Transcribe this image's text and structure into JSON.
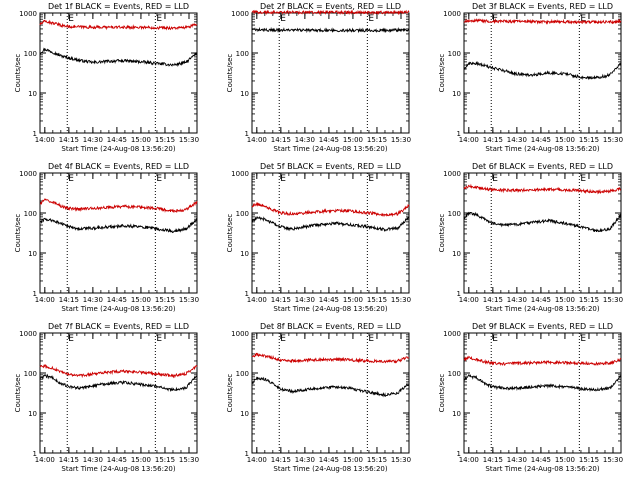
{
  "chart_data": [
    {
      "type": "line",
      "title": "Det 1f BLACK = Events, RED = LLD",
      "xlabel": "Start Time (24-Aug-08 13:56:20)",
      "ylabel": "Counts/sec",
      "yscale": "log",
      "ylim": [
        1,
        1000
      ],
      "yticks": [
        "1",
        "10",
        "100",
        "1000"
      ],
      "xlim": [
        "13:57",
        "15:35"
      ],
      "xticks": [
        "14:00",
        "14:15",
        "14:30",
        "14:45",
        "15:00",
        "15:15",
        "15:30"
      ],
      "markers": [
        "14:14",
        "15:09"
      ],
      "marker_flags": [
        "E",
        "E"
      ],
      "grid": false,
      "series": [
        {
          "color": "#000000",
          "x": [
            "13:57",
            "14:00",
            "14:05",
            "14:10",
            "14:15",
            "14:22",
            "14:30",
            "14:40",
            "14:50",
            "15:00",
            "15:10",
            "15:20",
            "15:28",
            "15:35"
          ],
          "values": [
            100,
            125,
            105,
            85,
            75,
            65,
            58,
            62,
            64,
            60,
            55,
            50,
            58,
            100
          ]
        },
        {
          "color": "#cc0000",
          "x": [
            "13:57",
            "14:00",
            "14:05",
            "14:10",
            "14:15",
            "14:22",
            "14:30",
            "14:40",
            "14:50",
            "15:00",
            "15:10",
            "15:20",
            "15:28",
            "15:35"
          ],
          "values": [
            520,
            620,
            560,
            490,
            460,
            450,
            440,
            440,
            440,
            440,
            430,
            420,
            430,
            520
          ]
        }
      ]
    },
    {
      "type": "line",
      "title": "Det 2f BLACK = Events, RED = LLD",
      "xlabel": "Start Time (24-Aug-08 13:56:20)",
      "ylabel": "Counts/sec",
      "yscale": "log",
      "ylim": [
        1,
        1000
      ],
      "yticks": [
        "1",
        "10",
        "100",
        "1000"
      ],
      "xlim": [
        "13:57",
        "15:35"
      ],
      "xticks": [
        "14:00",
        "14:15",
        "14:30",
        "14:45",
        "15:00",
        "15:15",
        "15:30"
      ],
      "markers": [
        "14:14",
        "15:09"
      ],
      "marker_flags": [
        "E",
        "E"
      ],
      "grid": false,
      "series": [
        {
          "color": "#000000",
          "x": [
            "13:57",
            "14:15",
            "14:30",
            "14:45",
            "15:00",
            "15:15",
            "15:35"
          ],
          "values": [
            380,
            375,
            370,
            370,
            370,
            365,
            380
          ]
        },
        {
          "color": "#cc0000",
          "x": [
            "13:57",
            "14:15",
            "14:30",
            "14:45",
            "15:00",
            "15:15",
            "15:35"
          ],
          "values": [
            1050,
            1050,
            1040,
            1040,
            1040,
            1030,
            1050
          ]
        }
      ]
    },
    {
      "type": "line",
      "title": "Det 3f BLACK = Events, RED = LLD",
      "xlabel": "Start Time (24-Aug-08 13:56:20)",
      "ylabel": "Counts/sec",
      "yscale": "log",
      "ylim": [
        1,
        1000
      ],
      "yticks": [
        "1",
        "10",
        "100",
        "1000"
      ],
      "xlim": [
        "13:57",
        "15:35"
      ],
      "xticks": [
        "14:00",
        "14:15",
        "14:30",
        "14:45",
        "15:00",
        "15:15",
        "15:30"
      ],
      "markers": [
        "14:14",
        "15:09"
      ],
      "marker_flags": [
        "E",
        "E"
      ],
      "grid": false,
      "series": [
        {
          "color": "#000000",
          "x": [
            "13:57",
            "14:00",
            "14:05",
            "14:12",
            "14:20",
            "14:30",
            "14:40",
            "14:50",
            "15:00",
            "15:10",
            "15:20",
            "15:28",
            "15:35"
          ],
          "values": [
            40,
            55,
            55,
            45,
            38,
            30,
            28,
            32,
            30,
            25,
            24,
            28,
            55
          ]
        },
        {
          "color": "#cc0000",
          "x": [
            "13:57",
            "14:00",
            "14:10",
            "14:20",
            "14:30",
            "14:45",
            "15:00",
            "15:15",
            "15:30",
            "15:35"
          ],
          "values": [
            600,
            650,
            630,
            620,
            610,
            600,
            600,
            590,
            600,
            620
          ]
        }
      ]
    },
    {
      "type": "line",
      "title": "Det 4f BLACK = Events, RED = LLD",
      "xlabel": "Start Time (24-Aug-08 13:56:20)",
      "ylabel": "Counts/sec",
      "yscale": "log",
      "ylim": [
        1,
        1000
      ],
      "yticks": [
        "1",
        "10",
        "100",
        "1000"
      ],
      "xlim": [
        "13:57",
        "15:35"
      ],
      "xticks": [
        "14:00",
        "14:15",
        "14:30",
        "14:45",
        "15:00",
        "15:15",
        "15:30"
      ],
      "markers": [
        "14:14",
        "15:09"
      ],
      "marker_flags": [
        "E",
        "E"
      ],
      "grid": false,
      "series": [
        {
          "color": "#000000",
          "x": [
            "13:57",
            "14:00",
            "14:05",
            "14:10",
            "14:15",
            "14:22",
            "14:30",
            "14:40",
            "14:50",
            "15:00",
            "15:10",
            "15:20",
            "15:28",
            "15:35"
          ],
          "values": [
            60,
            70,
            65,
            55,
            45,
            40,
            42,
            45,
            48,
            45,
            40,
            35,
            40,
            70
          ]
        },
        {
          "color": "#cc0000",
          "x": [
            "13:57",
            "14:00",
            "14:05",
            "14:10",
            "14:15",
            "14:22",
            "14:30",
            "14:40",
            "14:50",
            "15:00",
            "15:10",
            "15:20",
            "15:28",
            "15:35"
          ],
          "values": [
            170,
            210,
            190,
            150,
            130,
            125,
            130,
            140,
            145,
            140,
            130,
            110,
            120,
            190
          ]
        }
      ]
    },
    {
      "type": "line",
      "title": "Det 5f BLACK = Events, RED = LLD",
      "xlabel": "Start Time (24-Aug-08 13:56:20)",
      "ylabel": "Counts/sec",
      "yscale": "log",
      "ylim": [
        1,
        1000
      ],
      "yticks": [
        "1",
        "10",
        "100",
        "1000"
      ],
      "xlim": [
        "13:57",
        "15:35"
      ],
      "xticks": [
        "14:00",
        "14:15",
        "14:30",
        "14:45",
        "15:00",
        "15:15",
        "15:30"
      ],
      "markers": [
        "14:14",
        "15:09"
      ],
      "marker_flags": [
        "E",
        "E"
      ],
      "grid": false,
      "series": [
        {
          "color": "#000000",
          "x": [
            "13:57",
            "14:00",
            "14:05",
            "14:10",
            "14:15",
            "14:22",
            "14:30",
            "14:40",
            "14:50",
            "15:00",
            "15:10",
            "15:20",
            "15:28",
            "15:35"
          ],
          "values": [
            60,
            75,
            70,
            55,
            45,
            40,
            45,
            52,
            55,
            50,
            45,
            38,
            42,
            80
          ]
        },
        {
          "color": "#cc0000",
          "x": [
            "13:57",
            "14:00",
            "14:05",
            "14:10",
            "14:15",
            "14:22",
            "14:30",
            "14:40",
            "14:50",
            "15:00",
            "15:10",
            "15:20",
            "15:28",
            "15:35"
          ],
          "values": [
            150,
            170,
            150,
            120,
            100,
            95,
            100,
            110,
            115,
            110,
            100,
            90,
            95,
            150
          ]
        }
      ]
    },
    {
      "type": "line",
      "title": "Det 6f BLACK = Events, RED = LLD",
      "xlabel": "Start Time (24-Aug-08 13:56:20)",
      "ylabel": "Counts/sec",
      "yscale": "log",
      "ylim": [
        1,
        1000
      ],
      "yticks": [
        "1",
        "10",
        "100",
        "1000"
      ],
      "xlim": [
        "13:57",
        "15:35"
      ],
      "xticks": [
        "14:00",
        "14:15",
        "14:30",
        "14:45",
        "15:00",
        "15:15",
        "15:30"
      ],
      "markers": [
        "14:14",
        "15:09"
      ],
      "marker_flags": [
        "E",
        "E"
      ],
      "grid": false,
      "series": [
        {
          "color": "#000000",
          "x": [
            "13:57",
            "14:00",
            "14:05",
            "14:10",
            "14:15",
            "14:22",
            "14:30",
            "14:40",
            "14:50",
            "15:00",
            "15:10",
            "15:20",
            "15:28",
            "15:35"
          ],
          "values": [
            75,
            100,
            90,
            70,
            55,
            50,
            52,
            58,
            65,
            55,
            45,
            35,
            40,
            90
          ]
        },
        {
          "color": "#cc0000",
          "x": [
            "13:57",
            "14:00",
            "14:05",
            "14:10",
            "14:15",
            "14:22",
            "14:30",
            "14:40",
            "14:50",
            "15:00",
            "15:10",
            "15:20",
            "15:28",
            "15:35"
          ],
          "values": [
            400,
            460,
            440,
            400,
            380,
            370,
            370,
            380,
            390,
            380,
            360,
            340,
            350,
            400
          ]
        }
      ]
    },
    {
      "type": "line",
      "title": "Det 7f BLACK = Events, RED = LLD",
      "xlabel": "Start Time (24-Aug-08 13:56:20)",
      "ylabel": "Counts/sec",
      "yscale": "log",
      "ylim": [
        1,
        1000
      ],
      "yticks": [
        "1",
        "10",
        "100",
        "1000"
      ],
      "xlim": [
        "13:57",
        "15:35"
      ],
      "xticks": [
        "14:00",
        "14:15",
        "14:30",
        "14:45",
        "15:00",
        "15:15",
        "15:30"
      ],
      "markers": [
        "14:14",
        "15:09"
      ],
      "marker_flags": [
        "E",
        "E"
      ],
      "grid": false,
      "series": [
        {
          "color": "#000000",
          "x": [
            "13:57",
            "14:00",
            "14:05",
            "14:10",
            "14:15",
            "14:22",
            "14:30",
            "14:40",
            "14:50",
            "15:00",
            "15:10",
            "15:20",
            "15:28",
            "15:35"
          ],
          "values": [
            70,
            85,
            75,
            55,
            45,
            42,
            48,
            55,
            58,
            52,
            45,
            38,
            42,
            85
          ]
        },
        {
          "color": "#cc0000",
          "x": [
            "13:57",
            "14:00",
            "14:05",
            "14:10",
            "14:15",
            "14:22",
            "14:30",
            "14:40",
            "14:50",
            "15:00",
            "15:10",
            "15:20",
            "15:28",
            "15:35"
          ],
          "values": [
            140,
            150,
            130,
            105,
            90,
            85,
            95,
            105,
            110,
            105,
            95,
            85,
            95,
            150
          ]
        }
      ]
    },
    {
      "type": "line",
      "title": "Det 8f BLACK = Events, RED = LLD",
      "xlabel": "Start Time (24-Aug-08 13:56:20)",
      "ylabel": "Counts/sec",
      "yscale": "log",
      "ylim": [
        1,
        1000
      ],
      "yticks": [
        "1",
        "10",
        "100",
        "1000"
      ],
      "xlim": [
        "13:57",
        "15:35"
      ],
      "xticks": [
        "14:00",
        "14:15",
        "14:30",
        "14:45",
        "15:00",
        "15:15",
        "15:30"
      ],
      "markers": [
        "14:14",
        "15:09"
      ],
      "marker_flags": [
        "E",
        "E"
      ],
      "grid": false,
      "series": [
        {
          "color": "#000000",
          "x": [
            "13:57",
            "14:00",
            "14:05",
            "14:10",
            "14:15",
            "14:22",
            "14:30",
            "14:40",
            "14:50",
            "15:00",
            "15:10",
            "15:20",
            "15:28",
            "15:35"
          ],
          "values": [
            55,
            75,
            70,
            55,
            40,
            35,
            38,
            42,
            45,
            40,
            33,
            28,
            32,
            55
          ]
        },
        {
          "color": "#cc0000",
          "x": [
            "13:57",
            "14:00",
            "14:05",
            "14:10",
            "14:15",
            "14:22",
            "14:30",
            "14:40",
            "14:50",
            "15:00",
            "15:10",
            "15:20",
            "15:28",
            "15:35"
          ],
          "values": [
            260,
            290,
            270,
            240,
            210,
            200,
            210,
            215,
            220,
            210,
            200,
            190,
            200,
            250
          ]
        }
      ]
    },
    {
      "type": "line",
      "title": "Det 9f BLACK = Events, RED = LLD",
      "xlabel": "Start Time (24-Aug-08 13:56:20)",
      "ylabel": "Counts/sec",
      "yscale": "log",
      "ylim": [
        1,
        1000
      ],
      "yticks": [
        "1",
        "10",
        "100",
        "1000"
      ],
      "xlim": [
        "13:57",
        "15:35"
      ],
      "xticks": [
        "14:00",
        "14:15",
        "14:30",
        "14:45",
        "15:00",
        "15:15",
        "15:30"
      ],
      "markers": [
        "14:14",
        "15:09"
      ],
      "marker_flags": [
        "E",
        "E"
      ],
      "grid": false,
      "series": [
        {
          "color": "#000000",
          "x": [
            "13:57",
            "14:00",
            "14:05",
            "14:10",
            "14:15",
            "14:22",
            "14:30",
            "14:40",
            "14:50",
            "15:00",
            "15:10",
            "15:20",
            "15:28",
            "15:35"
          ],
          "values": [
            65,
            85,
            75,
            55,
            45,
            42,
            42,
            45,
            48,
            45,
            40,
            38,
            42,
            85
          ]
        },
        {
          "color": "#cc0000",
          "x": [
            "13:57",
            "14:00",
            "14:05",
            "14:10",
            "14:15",
            "14:22",
            "14:30",
            "14:40",
            "14:50",
            "15:00",
            "15:10",
            "15:20",
            "15:28",
            "15:35"
          ],
          "values": [
            220,
            240,
            220,
            190,
            175,
            170,
            175,
            180,
            185,
            180,
            175,
            170,
            175,
            220
          ]
        }
      ]
    }
  ]
}
